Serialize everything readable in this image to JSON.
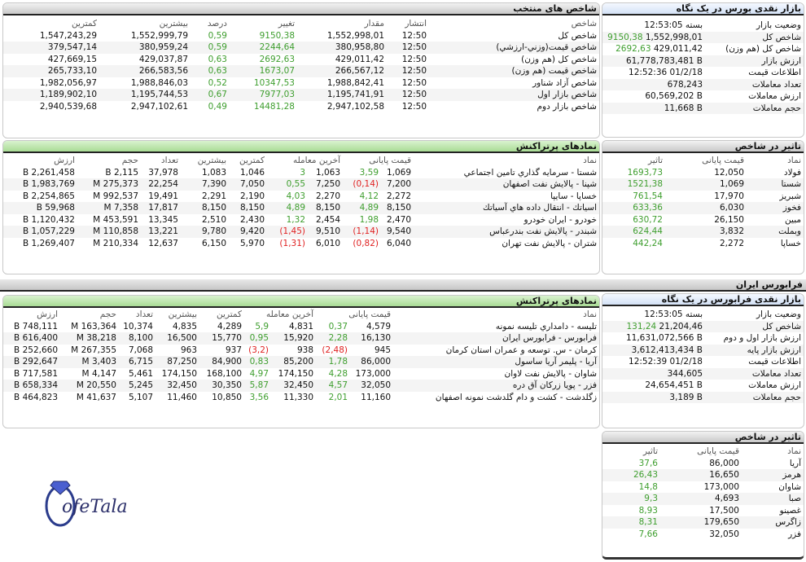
{
  "colors": {
    "positive": "#3e9e2e",
    "negative": "#e02222",
    "selected_header": "#c9c9c9",
    "symbols_header": "#a9dc95",
    "glance_header": "#d4e2f6"
  },
  "selected_indices": {
    "title": "شاخص های منتخب",
    "headers": [
      "شاخص",
      "انتشار",
      "مقدار",
      "تغییر",
      "درصد",
      "بیشترین",
      "کمترین"
    ],
    "rows": [
      [
        "شاخص کل",
        "12:50",
        "1,552,998,01",
        "9150,38",
        "0,59",
        "1,552,999,79",
        "1,547,243,29"
      ],
      [
        "شاخص قیمت(وزني-ارزشي)",
        "12:50",
        "380,958,80",
        "2244,64",
        "0,59",
        "380,959,24",
        "379,547,14"
      ],
      [
        "شاخص کل (هم وزن)",
        "12:50",
        "429,011,42",
        "2692,63",
        "0,63",
        "429,037,87",
        "427,669,15"
      ],
      [
        "شاخص قیمت (هم وزن)",
        "12:50",
        "266,567,12",
        "1673,07",
        "0,63",
        "266,583,56",
        "265,733,10"
      ],
      [
        "شاخص آزاد شناور",
        "12:50",
        "1,988,842,41",
        "10347,53",
        "0,52",
        "1,988,846,03",
        "1,982,056,97"
      ],
      [
        "شاخص بازار اول",
        "12:50",
        "1,195,741,91",
        "7977,03",
        "0,67",
        "1,195,744,53",
        "1,189,902,10"
      ],
      [
        "شاخص بازار دوم",
        "12:50",
        "2,947,102,58",
        "14481,28",
        "0,49",
        "2,947,102,61",
        "2,940,539,68"
      ]
    ]
  },
  "bourse_glance": {
    "title": "بازار نقدی بورس در یک نگاه",
    "rows": [
      {
        "label": "وضعیت بازار",
        "value": "بسته 12:53:05"
      },
      {
        "label": "شاخص کل",
        "value": "1,552,998,01",
        "change": "9150,38"
      },
      {
        "label": "شاخص کل (هم وزن)",
        "value": "429,011,42",
        "change": "2692,63"
      },
      {
        "label": "ارزش بازار",
        "value": "61,778,783,481 B"
      },
      {
        "label": "اطلاعات قیمت",
        "value": "12:52:36 01/2/18"
      },
      {
        "label": "تعداد معاملات",
        "value": "678,243"
      },
      {
        "label": "ارزش معاملات",
        "value": "60,569,202 B"
      },
      {
        "label": "حجم معاملات",
        "value": "11,668 B"
      }
    ]
  },
  "bourse_active": {
    "title": "نمادهای پرتراکنش",
    "headers": [
      "نماد",
      "قیمت پایانی",
      "آخرین معامله",
      "کمترین",
      "بیشترین",
      "تعداد",
      "حجم",
      "ارزش"
    ],
    "rows": [
      [
        "شستا - سرمايه گذاري تامين اجتماعي",
        "1,069",
        "3,59",
        "1,063",
        "3",
        "1,046",
        "1,083",
        "37,978",
        "2,115 B",
        "2,261,458 B"
      ],
      [
        "شپنا - پالايش نفت اصفهان",
        "7,200",
        "(0,14)",
        "7,250",
        "0,55",
        "7,050",
        "7,390",
        "22,254",
        "275,373 M",
        "1,983,769 B"
      ],
      [
        "خساپا - سايپا",
        "2,272",
        "4,12",
        "2,270",
        "4,03",
        "2,190",
        "2,291",
        "19,491",
        "992,537 M",
        "2,254,865 B"
      ],
      [
        "اسياتك - انتقال داده هاي آسياتك",
        "8,150",
        "4,89",
        "8,150",
        "4,89",
        "8,150",
        "8,150",
        "17,817",
        "7,358 M",
        "59,968 B"
      ],
      [
        "خودرو - ايران خودرو",
        "2,470",
        "1,98",
        "2,454",
        "1,32",
        "2,430",
        "2,510",
        "13,345",
        "453,591 M",
        "1,120,432 B"
      ],
      [
        "شبندر - پالايش نفت بندرعباس",
        "9,540",
        "(1,14)",
        "9,510",
        "(1,45)",
        "9,420",
        "9,780",
        "13,221",
        "110,858 M",
        "1,057,229 B"
      ],
      [
        "شتران - پالايش نفت تهران",
        "6,040",
        "(0,82)",
        "6,010",
        "(1,31)",
        "5,970",
        "6,150",
        "12,637",
        "210,334 M",
        "1,269,407 B"
      ]
    ]
  },
  "bourse_impact": {
    "title": "تاثیر در شاخص",
    "headers": [
      "نماد",
      "قیمت پایانی",
      "تاثیر"
    ],
    "rows": [
      [
        "فولاد",
        "12,050",
        "1693,73"
      ],
      [
        "شستا",
        "1,069",
        "1521,38"
      ],
      [
        "شبریز",
        "17,970",
        "761,54"
      ],
      [
        "فخوز",
        "6,030",
        "633,36"
      ],
      [
        "مبین",
        "26,150",
        "630,72"
      ],
      [
        "وبملت",
        "3,832",
        "624,44"
      ],
      [
        "خساپا",
        "2,272",
        "442,24"
      ]
    ]
  },
  "farabourse_band": "فرابورس ایران",
  "fara_active": {
    "title": "نمادهای پرتراکنش",
    "headers": [
      "نماد",
      "قیمت پایانی",
      "آخرین معامله",
      "کمترین",
      "بیشترین",
      "تعداد",
      "حجم",
      "ارزش"
    ],
    "rows": [
      [
        "تليسه - دامداري تليسه نمونه",
        "4,579",
        "0,37",
        "4,831",
        "5,9",
        "4,289",
        "4,835",
        "10,374",
        "163,364 M",
        "748,111 B"
      ],
      [
        "فرابورس - فرابورس ايران",
        "16,130",
        "2,28",
        "15,920",
        "0,95",
        "15,770",
        "16,500",
        "8,100",
        "38,218 M",
        "616,400 B"
      ],
      [
        "كرمان - س. توسعه و عمران استان كرمان",
        "945",
        "(2,48)",
        "938",
        "(3,2)",
        "937",
        "963",
        "7,068",
        "267,355 M",
        "252,660 B"
      ],
      [
        "آريا - پليمر آريا ساسول",
        "86,000",
        "1,78",
        "85,200",
        "0,83",
        "84,900",
        "87,250",
        "6,715",
        "3,403 M",
        "292,647 B"
      ],
      [
        "شاوان - پالايش نفت لاوان",
        "173,000",
        "4,28",
        "174,150",
        "4,97",
        "168,100",
        "174,150",
        "5,461",
        "4,147 M",
        "717,581 B"
      ],
      [
        "فزر - پويا زركان آق دره",
        "32,050",
        "4,57",
        "32,450",
        "5,87",
        "30,350",
        "32,450",
        "5,245",
        "20,550 M",
        "658,334 B"
      ],
      [
        "زگلدشت - كشت و دام گلدشت نمونه اصفهان",
        "11,160",
        "2,01",
        "11,330",
        "3,56",
        "10,850",
        "11,460",
        "5,107",
        "41,637 M",
        "464,823 B"
      ]
    ]
  },
  "fara_glance": {
    "title": "بازار نقدی فرابورس در یک نگاه",
    "rows": [
      {
        "label": "وضعیت بازار",
        "value": "بسته 12:53:05"
      },
      {
        "label": "شاخص کل",
        "value": "21,204,46",
        "change": "131,24"
      },
      {
        "label": "ارزش بازار اول و دوم",
        "value": "11,631,072,566 B"
      },
      {
        "label": "ارزش بازار پایه",
        "value": "3,612,413,434 B"
      },
      {
        "label": "اطلاعات قیمت",
        "value": "12:52:39 01/2/18"
      },
      {
        "label": "تعداد معاملات",
        "value": "344,605"
      },
      {
        "label": "ارزش معاملات",
        "value": "24,654,451 B"
      },
      {
        "label": "حجم معاملات",
        "value": "3,189 B"
      }
    ]
  },
  "fara_impact": {
    "title": "تاثیر در شاخص",
    "headers": [
      "نماد",
      "قیمت پایانی",
      "تاثیر"
    ],
    "rows": [
      [
        "آريا",
        "86,000",
        "37,6"
      ],
      [
        "هرمز",
        "16,650",
        "26,43"
      ],
      [
        "شاوان",
        "173,000",
        "14,8"
      ],
      [
        "صبا",
        "4,693",
        "9,3"
      ],
      [
        "غصينو",
        "17,500",
        "8,93"
      ],
      [
        "زاگرس",
        "179,650",
        "8,31"
      ],
      [
        "فزر",
        "32,050",
        "7,66"
      ]
    ]
  },
  "logo": {
    "text": "CofeTala",
    "icon": "diamond-ring-icon"
  }
}
